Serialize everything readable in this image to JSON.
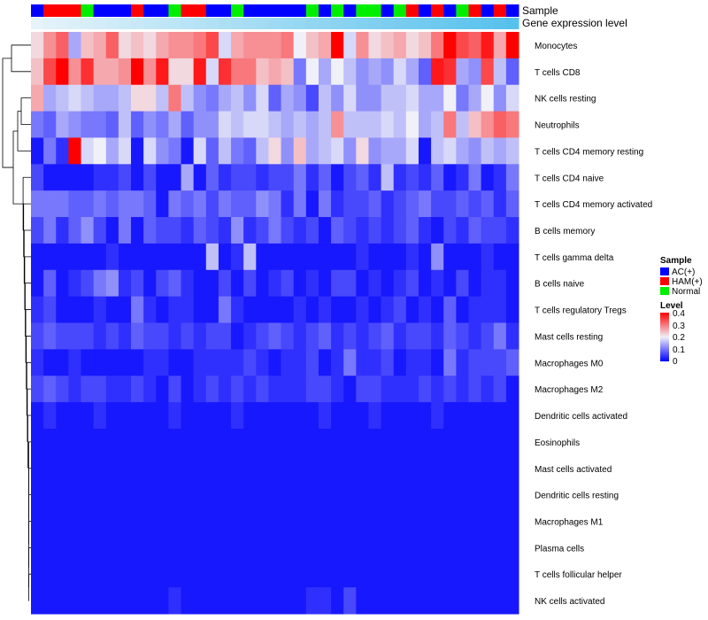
{
  "chart_data": {
    "type": "heatmap",
    "title": "",
    "annotation_labels": [
      "Sample",
      "Gene expression level"
    ],
    "sample_groups": [
      "AC(+)",
      "HAM(+)",
      "Normal"
    ],
    "sample_group_colors": {
      "AC(+)": "#0000ff",
      "HAM(+)": "#ff0000",
      "Normal": "#00ee00"
    },
    "samples": [
      "AC(+)",
      "HAM(+)",
      "HAM(+)",
      "HAM(+)",
      "Normal",
      "AC(+)",
      "AC(+)",
      "AC(+)",
      "HAM(+)",
      "AC(+)",
      "AC(+)",
      "Normal",
      "HAM(+)",
      "HAM(+)",
      "AC(+)",
      "AC(+)",
      "Normal",
      "AC(+)",
      "AC(+)",
      "AC(+)",
      "AC(+)",
      "AC(+)",
      "Normal",
      "AC(+)",
      "Normal",
      "AC(+)",
      "Normal",
      "Normal",
      "AC(+)",
      "Normal",
      "HAM(+)",
      "AC(+)",
      "HAM(+)",
      "AC(+)",
      "Normal",
      "HAM(+)",
      "AC(+)",
      "HAM(+)",
      "AC(+)"
    ],
    "expression_gradient": [
      "#e6f3fa",
      "#56c1ec"
    ],
    "rows": [
      "Monocytes",
      "T cells CD8",
      "NK cells resting",
      "Neutrophils",
      "T cells CD4 memory resting",
      "T cells CD4 naive",
      "T cells CD4 memory activated",
      "B cells memory",
      "T cells gamma delta",
      "B cells naive",
      "T cells regulatory  Tregs",
      "Mast cells resting",
      "Macrophages M0",
      "Macrophages M2",
      "Dendritic cells activated",
      "Eosinophils",
      "Mast cells activated",
      "Dendritic cells resting",
      "Macrophages M1",
      "Plasma cells",
      "T cells follicular helper",
      "NK cells activated"
    ],
    "values": [
      [
        0.22,
        0.28,
        0.32,
        0.14,
        0.24,
        0.26,
        0.32,
        0.22,
        0.24,
        0.22,
        0.26,
        0.28,
        0.28,
        0.3,
        0.34,
        0.18,
        0.26,
        0.28,
        0.28,
        0.28,
        0.3,
        0.2,
        0.24,
        0.26,
        0.4,
        0.18,
        0.28,
        0.22,
        0.24,
        0.26,
        0.22,
        0.24,
        0.3,
        0.4,
        0.34,
        0.32,
        0.38,
        0.26,
        0.4
      ],
      [
        0.24,
        0.34,
        0.4,
        0.28,
        0.36,
        0.26,
        0.26,
        0.28,
        0.4,
        0.28,
        0.38,
        0.22,
        0.22,
        0.38,
        0.18,
        0.36,
        0.3,
        0.3,
        0.24,
        0.26,
        0.24,
        0.1,
        0.2,
        0.14,
        0.2,
        0.16,
        0.12,
        0.14,
        0.12,
        0.18,
        0.14,
        0.08,
        0.38,
        0.36,
        0.14,
        0.12,
        0.34,
        0.16,
        0.08
      ],
      [
        0.26,
        0.14,
        0.16,
        0.18,
        0.16,
        0.14,
        0.14,
        0.16,
        0.22,
        0.22,
        0.16,
        0.3,
        0.16,
        0.12,
        0.1,
        0.14,
        0.16,
        0.12,
        0.18,
        0.08,
        0.14,
        0.12,
        0.06,
        0.16,
        0.12,
        0.18,
        0.12,
        0.12,
        0.16,
        0.16,
        0.18,
        0.14,
        0.14,
        0.2,
        0.1,
        0.14,
        0.2,
        0.12,
        0.18
      ],
      [
        0.1,
        0.08,
        0.14,
        0.12,
        0.1,
        0.1,
        0.08,
        0.16,
        0.08,
        0.12,
        0.1,
        0.14,
        0.08,
        0.12,
        0.12,
        0.18,
        0.16,
        0.18,
        0.18,
        0.16,
        0.14,
        0.16,
        0.14,
        0.16,
        0.28,
        0.16,
        0.16,
        0.16,
        0.18,
        0.16,
        0.2,
        0.14,
        0.16,
        0.3,
        0.16,
        0.24,
        0.28,
        0.32,
        0.3
      ],
      [
        0.02,
        0.1,
        0.04,
        0.4,
        0.18,
        0.2,
        0.14,
        0.18,
        0.02,
        0.18,
        0.12,
        0.1,
        0.02,
        0.18,
        0.08,
        0.16,
        0.1,
        0.08,
        0.16,
        0.22,
        0.12,
        0.24,
        0.14,
        0.16,
        0.18,
        0.12,
        0.22,
        0.12,
        0.14,
        0.14,
        0.18,
        0.02,
        0.16,
        0.18,
        0.14,
        0.12,
        0.16,
        0.14,
        0.16
      ],
      [
        0.06,
        0.02,
        0.02,
        0.02,
        0.02,
        0.04,
        0.04,
        0.06,
        0.02,
        0.06,
        0.02,
        0.02,
        0.14,
        0.02,
        0.08,
        0.04,
        0.06,
        0.06,
        0.04,
        0.06,
        0.06,
        0.1,
        0.04,
        0.08,
        0.02,
        0.06,
        0.08,
        0.04,
        0.16,
        0.04,
        0.06,
        0.04,
        0.08,
        0.02,
        0.04,
        0.1,
        0.02,
        0.04,
        0.1
      ],
      [
        0.1,
        0.1,
        0.1,
        0.08,
        0.08,
        0.1,
        0.08,
        0.1,
        0.1,
        0.08,
        0.02,
        0.1,
        0.08,
        0.1,
        0.06,
        0.1,
        0.08,
        0.08,
        0.12,
        0.1,
        0.04,
        0.1,
        0.02,
        0.1,
        0.04,
        0.06,
        0.06,
        0.08,
        0.04,
        0.06,
        0.08,
        0.1,
        0.06,
        0.06,
        0.08,
        0.06,
        0.08,
        0.04,
        0.08
      ],
      [
        0.06,
        0.1,
        0.04,
        0.08,
        0.12,
        0.06,
        0.02,
        0.1,
        0.02,
        0.08,
        0.06,
        0.06,
        0.04,
        0.08,
        0.06,
        0.04,
        0.12,
        0.04,
        0.06,
        0.1,
        0.06,
        0.04,
        0.06,
        0.02,
        0.08,
        0.06,
        0.04,
        0.06,
        0.04,
        0.06,
        0.08,
        0.04,
        0.02,
        0.06,
        0.04,
        0.08,
        0.06,
        0.06,
        0.04
      ],
      [
        0.02,
        0.02,
        0.02,
        0.02,
        0.02,
        0.02,
        0.04,
        0.02,
        0.02,
        0.02,
        0.02,
        0.02,
        0.02,
        0.02,
        0.16,
        0.02,
        0.04,
        0.16,
        0.02,
        0.02,
        0.02,
        0.02,
        0.02,
        0.02,
        0.02,
        0.02,
        0.04,
        0.02,
        0.02,
        0.02,
        0.04,
        0.02,
        0.12,
        0.02,
        0.02,
        0.02,
        0.04,
        0.02,
        0.02
      ],
      [
        0.02,
        0.08,
        0.02,
        0.04,
        0.06,
        0.1,
        0.12,
        0.04,
        0.06,
        0.02,
        0.06,
        0.08,
        0.04,
        0.02,
        0.02,
        0.06,
        0.02,
        0.06,
        0.02,
        0.04,
        0.06,
        0.02,
        0.04,
        0.02,
        0.06,
        0.06,
        0.02,
        0.04,
        0.02,
        0.04,
        0.06,
        0.02,
        0.04,
        0.02,
        0.06,
        0.02,
        0.04,
        0.04,
        0.02
      ],
      [
        0.04,
        0.06,
        0.02,
        0.02,
        0.02,
        0.04,
        0.02,
        0.02,
        0.1,
        0.04,
        0.02,
        0.04,
        0.04,
        0.02,
        0.02,
        0.1,
        0.04,
        0.02,
        0.02,
        0.02,
        0.02,
        0.04,
        0.02,
        0.04,
        0.02,
        0.02,
        0.04,
        0.02,
        0.04,
        0.06,
        0.02,
        0.04,
        0.02,
        0.08,
        0.02,
        0.04,
        0.04,
        0.04,
        0.02
      ],
      [
        0.06,
        0.08,
        0.06,
        0.06,
        0.06,
        0.04,
        0.06,
        0.04,
        0.08,
        0.06,
        0.06,
        0.04,
        0.06,
        0.04,
        0.06,
        0.06,
        0.02,
        0.04,
        0.06,
        0.08,
        0.06,
        0.04,
        0.06,
        0.08,
        0.04,
        0.06,
        0.04,
        0.06,
        0.08,
        0.04,
        0.06,
        0.06,
        0.04,
        0.08,
        0.06,
        0.04,
        0.06,
        0.1,
        0.04
      ],
      [
        0.04,
        0.02,
        0.02,
        0.04,
        0.02,
        0.02,
        0.02,
        0.02,
        0.02,
        0.04,
        0.04,
        0.02,
        0.02,
        0.04,
        0.04,
        0.04,
        0.04,
        0.06,
        0.04,
        0.02,
        0.04,
        0.04,
        0.06,
        0.02,
        0.04,
        0.1,
        0.04,
        0.04,
        0.06,
        0.02,
        0.04,
        0.04,
        0.02,
        0.1,
        0.04,
        0.06,
        0.06,
        0.06,
        0.08
      ],
      [
        0.06,
        0.08,
        0.06,
        0.04,
        0.06,
        0.06,
        0.04,
        0.04,
        0.06,
        0.04,
        0.02,
        0.06,
        0.02,
        0.04,
        0.06,
        0.04,
        0.06,
        0.04,
        0.06,
        0.04,
        0.04,
        0.04,
        0.06,
        0.06,
        0.04,
        0.02,
        0.06,
        0.06,
        0.04,
        0.04,
        0.04,
        0.06,
        0.04,
        0.06,
        0.04,
        0.06,
        0.04,
        0.06,
        0.02
      ],
      [
        0.02,
        0.04,
        0.02,
        0.02,
        0.02,
        0.04,
        0.02,
        0.02,
        0.02,
        0.02,
        0.02,
        0.04,
        0.02,
        0.02,
        0.02,
        0.02,
        0.04,
        0.02,
        0.02,
        0.02,
        0.02,
        0.02,
        0.02,
        0.04,
        0.02,
        0.02,
        0.02,
        0.04,
        0.02,
        0.02,
        0.02,
        0.02,
        0.04,
        0.02,
        0.02,
        0.02,
        0.02,
        0.02,
        0.02
      ],
      [
        0.02,
        0.02,
        0.02,
        0.02,
        0.02,
        0.02,
        0.02,
        0.02,
        0.02,
        0.02,
        0.02,
        0.02,
        0.02,
        0.02,
        0.02,
        0.02,
        0.02,
        0.02,
        0.02,
        0.02,
        0.02,
        0.02,
        0.02,
        0.02,
        0.02,
        0.02,
        0.02,
        0.02,
        0.02,
        0.02,
        0.02,
        0.02,
        0.02,
        0.02,
        0.02,
        0.02,
        0.02,
        0.02,
        0.02
      ],
      [
        0.02,
        0.02,
        0.02,
        0.02,
        0.02,
        0.02,
        0.02,
        0.02,
        0.02,
        0.02,
        0.02,
        0.02,
        0.02,
        0.02,
        0.02,
        0.02,
        0.02,
        0.02,
        0.02,
        0.02,
        0.02,
        0.02,
        0.02,
        0.02,
        0.02,
        0.02,
        0.02,
        0.02,
        0.02,
        0.02,
        0.02,
        0.02,
        0.02,
        0.02,
        0.02,
        0.02,
        0.02,
        0.02,
        0.02
      ],
      [
        0.02,
        0.02,
        0.02,
        0.02,
        0.02,
        0.02,
        0.02,
        0.02,
        0.02,
        0.02,
        0.02,
        0.02,
        0.02,
        0.02,
        0.02,
        0.02,
        0.02,
        0.02,
        0.02,
        0.02,
        0.02,
        0.02,
        0.02,
        0.02,
        0.02,
        0.02,
        0.02,
        0.02,
        0.02,
        0.02,
        0.02,
        0.02,
        0.02,
        0.02,
        0.02,
        0.02,
        0.02,
        0.02,
        0.02
      ],
      [
        0.02,
        0.02,
        0.02,
        0.02,
        0.02,
        0.02,
        0.02,
        0.02,
        0.02,
        0.02,
        0.02,
        0.02,
        0.02,
        0.02,
        0.02,
        0.02,
        0.02,
        0.02,
        0.02,
        0.02,
        0.02,
        0.02,
        0.02,
        0.02,
        0.02,
        0.02,
        0.02,
        0.02,
        0.02,
        0.02,
        0.02,
        0.02,
        0.02,
        0.02,
        0.02,
        0.02,
        0.02,
        0.02,
        0.02
      ],
      [
        0.02,
        0.02,
        0.02,
        0.02,
        0.02,
        0.02,
        0.02,
        0.02,
        0.02,
        0.02,
        0.02,
        0.02,
        0.02,
        0.02,
        0.02,
        0.02,
        0.02,
        0.02,
        0.02,
        0.02,
        0.02,
        0.02,
        0.02,
        0.02,
        0.02,
        0.02,
        0.02,
        0.02,
        0.02,
        0.02,
        0.02,
        0.02,
        0.02,
        0.02,
        0.02,
        0.02,
        0.02,
        0.02,
        0.02
      ],
      [
        0.02,
        0.02,
        0.02,
        0.02,
        0.02,
        0.02,
        0.02,
        0.02,
        0.02,
        0.02,
        0.02,
        0.02,
        0.02,
        0.02,
        0.02,
        0.02,
        0.02,
        0.02,
        0.02,
        0.02,
        0.02,
        0.02,
        0.02,
        0.02,
        0.02,
        0.02,
        0.02,
        0.02,
        0.02,
        0.02,
        0.02,
        0.02,
        0.02,
        0.02,
        0.02,
        0.02,
        0.02,
        0.02,
        0.02
      ],
      [
        0.02,
        0.02,
        0.02,
        0.02,
        0.02,
        0.02,
        0.02,
        0.02,
        0.02,
        0.02,
        0.02,
        0.04,
        0.02,
        0.02,
        0.02,
        0.02,
        0.02,
        0.02,
        0.02,
        0.02,
        0.02,
        0.02,
        0.04,
        0.04,
        0.02,
        0.06,
        0.02,
        0.02,
        0.02,
        0.02,
        0.02,
        0.02,
        0.02,
        0.02,
        0.02,
        0.02,
        0.02,
        0.02,
        0.02
      ]
    ],
    "color_scale": {
      "min": 0,
      "max": 0.4,
      "stops": [
        [
          0,
          "#0000ff"
        ],
        [
          0.2,
          "#f0f0f8"
        ],
        [
          0.4,
          "#ff0000"
        ]
      ]
    },
    "legend": {
      "sample_title": "Sample",
      "level_title": "Level",
      "level_ticks": [
        "0.4",
        "0.3",
        "0.2",
        "0.1",
        "0"
      ],
      "position": "right"
    }
  }
}
